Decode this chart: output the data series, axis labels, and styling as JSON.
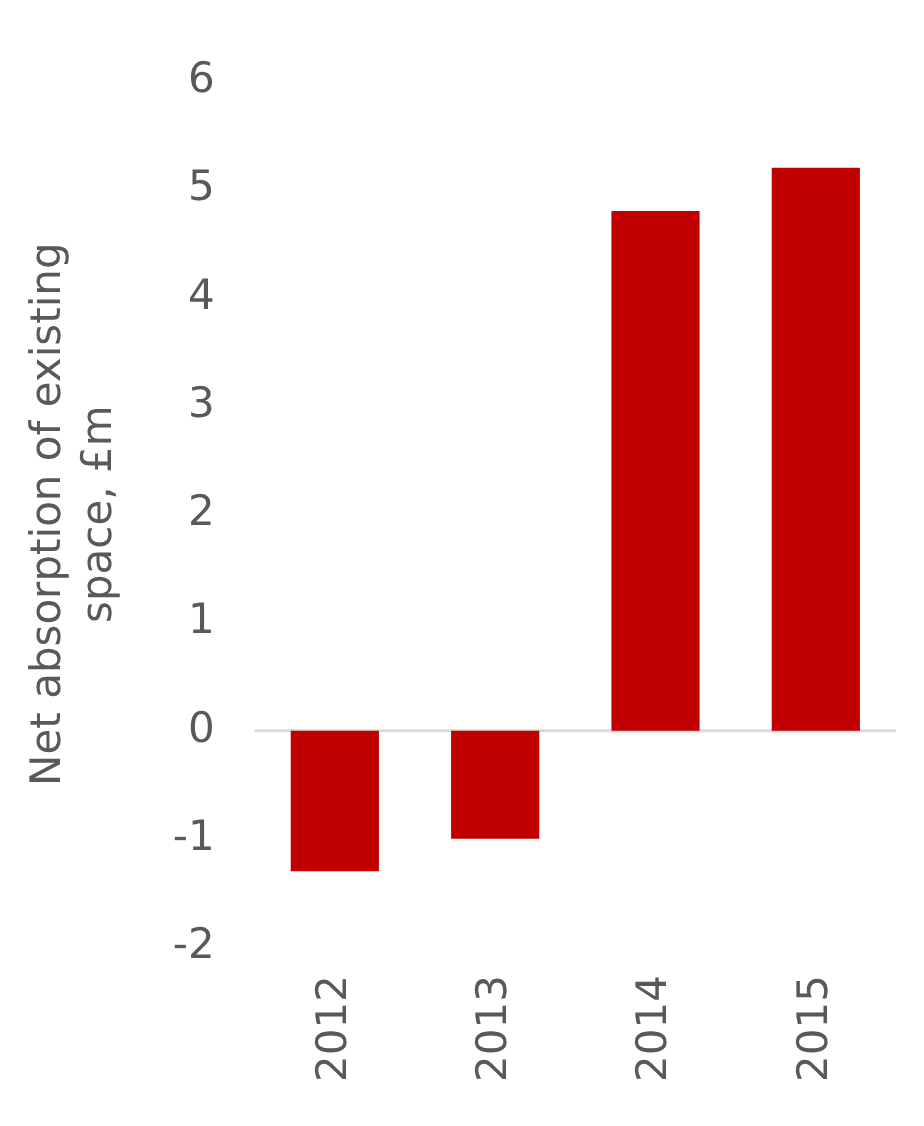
{
  "chart_data": {
    "type": "bar",
    "ylabel": "Net absorption of existing space, £m",
    "categories": [
      "2012",
      "2013",
      "2014",
      "2015"
    ],
    "values": [
      -1.3,
      -1.0,
      4.8,
      5.2
    ],
    "color": "#c00000",
    "ylim": [
      -2,
      6
    ],
    "yticks": [
      -2,
      -1,
      0,
      1,
      2,
      3,
      4,
      5,
      6
    ],
    "grid": false,
    "legend": false,
    "ref_lines": [
      {
        "axis": "y",
        "value": 0,
        "color": "#d9d9d9"
      }
    ]
  }
}
